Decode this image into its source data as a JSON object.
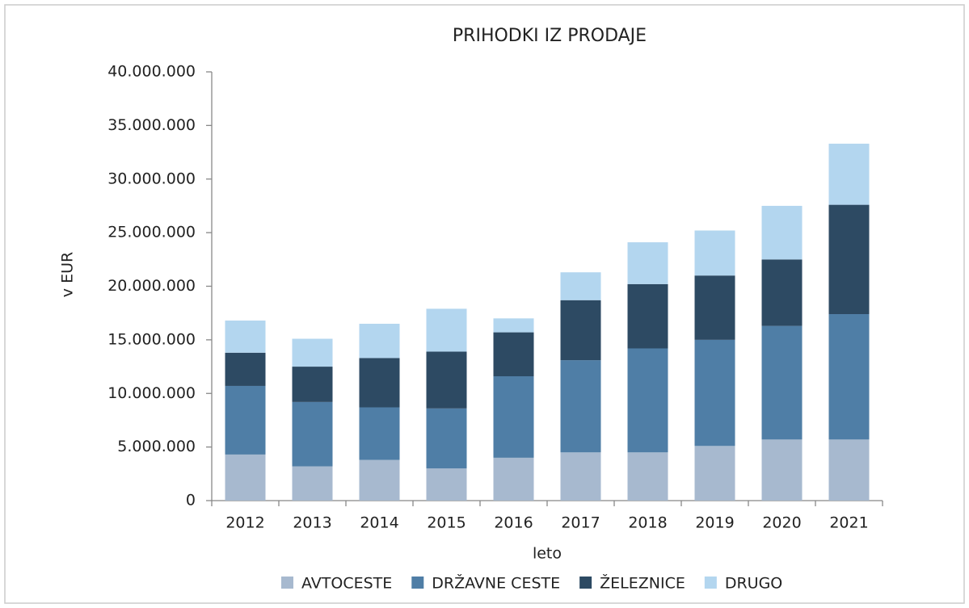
{
  "chart_data": {
    "type": "stacked_bar",
    "title": "PRIHODKI IZ PRODAJE",
    "x_label": "leto",
    "y_label": "v EUR",
    "categories": [
      "2012",
      "2013",
      "2014",
      "2015",
      "2016",
      "2017",
      "2018",
      "2019",
      "2020",
      "2021"
    ],
    "series": [
      {
        "name": "AVTOCESTE",
        "color": "#a7b9cf",
        "values": [
          4300000,
          3200000,
          3800000,
          3000000,
          4000000,
          4500000,
          4500000,
          5100000,
          5700000,
          5700000
        ]
      },
      {
        "name": "DRŽAVNE CESTE",
        "color": "#4f7ea6",
        "values": [
          6400000,
          6000000,
          4900000,
          5600000,
          7600000,
          8600000,
          9700000,
          9900000,
          10600000,
          11700000
        ]
      },
      {
        "name": "ŽELEZNICE",
        "color": "#2d4a63",
        "values": [
          3100000,
          3300000,
          4600000,
          5300000,
          4100000,
          5600000,
          6000000,
          6000000,
          6200000,
          10200000
        ]
      },
      {
        "name": "DRUGO",
        "color": "#b3d6ef",
        "values": [
          3000000,
          2600000,
          3200000,
          4000000,
          1300000,
          2600000,
          3900000,
          4200000,
          5000000,
          5700000
        ]
      }
    ],
    "ylim": [
      0,
      40000000
    ],
    "yticks": [
      0,
      {
        "value": 5000000,
        "label": "5.000.000"
      },
      {
        "value": 10000000,
        "label": "10.000.000"
      },
      {
        "value": 15000000,
        "label": "15.000.000"
      },
      {
        "value": 20000000,
        "label": "20.000.000"
      },
      {
        "value": 25000000,
        "label": "25.000.000"
      },
      {
        "value": 30000000,
        "label": "30.000.000"
      },
      {
        "value": 35000000,
        "label": "35.000.000"
      },
      {
        "value": 40000000,
        "label": "40.000.000"
      }
    ],
    "grid": false,
    "legend": "bottom"
  }
}
